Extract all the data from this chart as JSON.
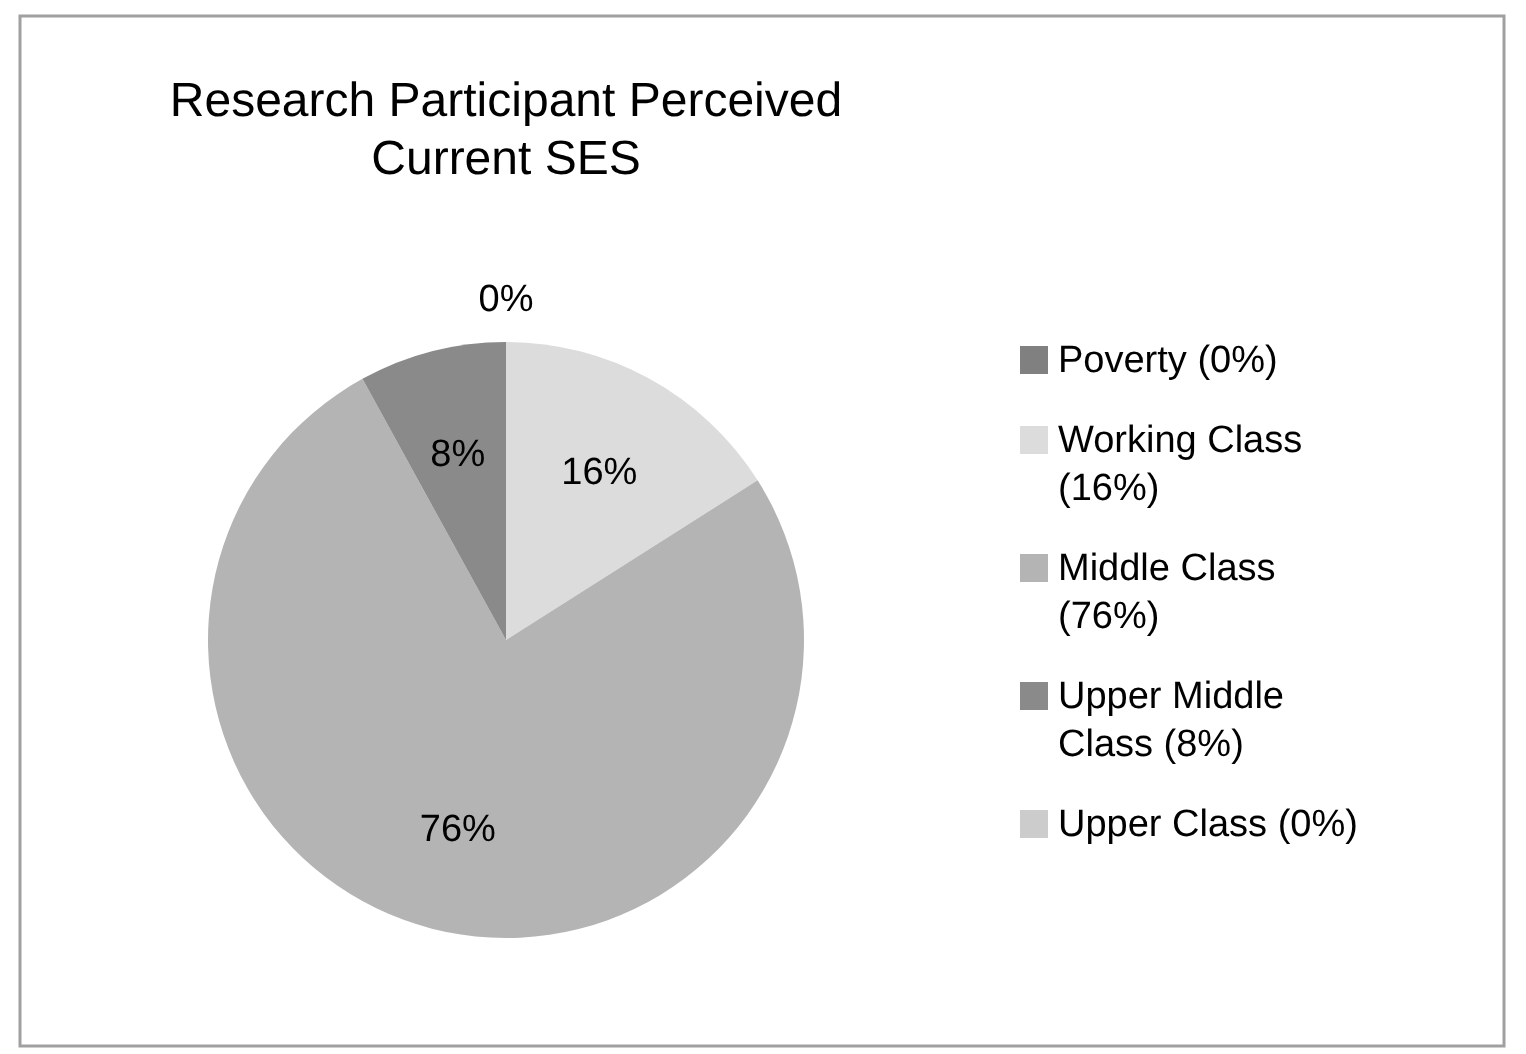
{
  "chart_data": {
    "type": "pie",
    "title": "Research Participant Perceived Current SES",
    "categories": [
      "Poverty (0%)",
      "Working Class (16%)",
      "Middle Class (76%)",
      "Upper Middle Class (8%)",
      "Upper Class (0%)"
    ],
    "values": [
      0,
      16,
      76,
      8,
      0
    ],
    "colors": [
      "#808080",
      "#dcdcdc",
      "#b4b4b4",
      "#8a8a8a",
      "#cccccc"
    ],
    "value_labels": [
      "0%",
      "16%",
      "76%",
      "8%",
      null
    ],
    "legend": "right"
  }
}
